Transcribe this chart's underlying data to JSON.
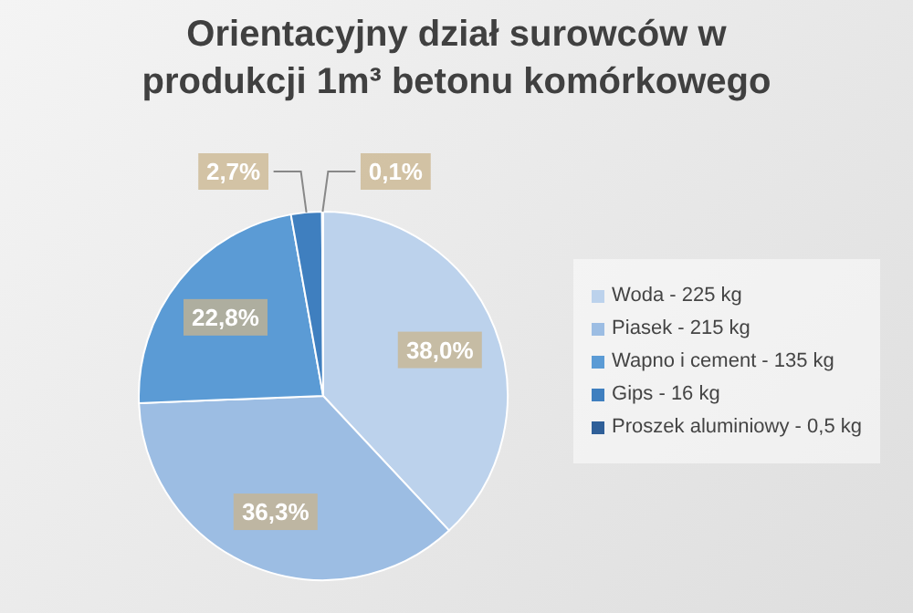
{
  "chart_data": {
    "type": "pie",
    "title": "Orientacyjny dział surowców w produkcji 1m³ betonu komórkowego",
    "categories": [
      "Woda - 225 kg",
      "Piasek - 215 kg",
      "Wapno i cement - 135 kg",
      "Gips - 16 kg",
      "Proszek aluminiowy - 0,5 kg"
    ],
    "values": [
      38.0,
      36.3,
      22.8,
      2.7,
      0.1
    ],
    "value_labels": [
      "38,0%",
      "36,3%",
      "22,8%",
      "2,7%",
      "0,1%"
    ],
    "colors": [
      "#bcd2ec",
      "#9cbde3",
      "#5b9bd5",
      "#3f7fbf",
      "#2f5f98"
    ],
    "legend": "right"
  }
}
